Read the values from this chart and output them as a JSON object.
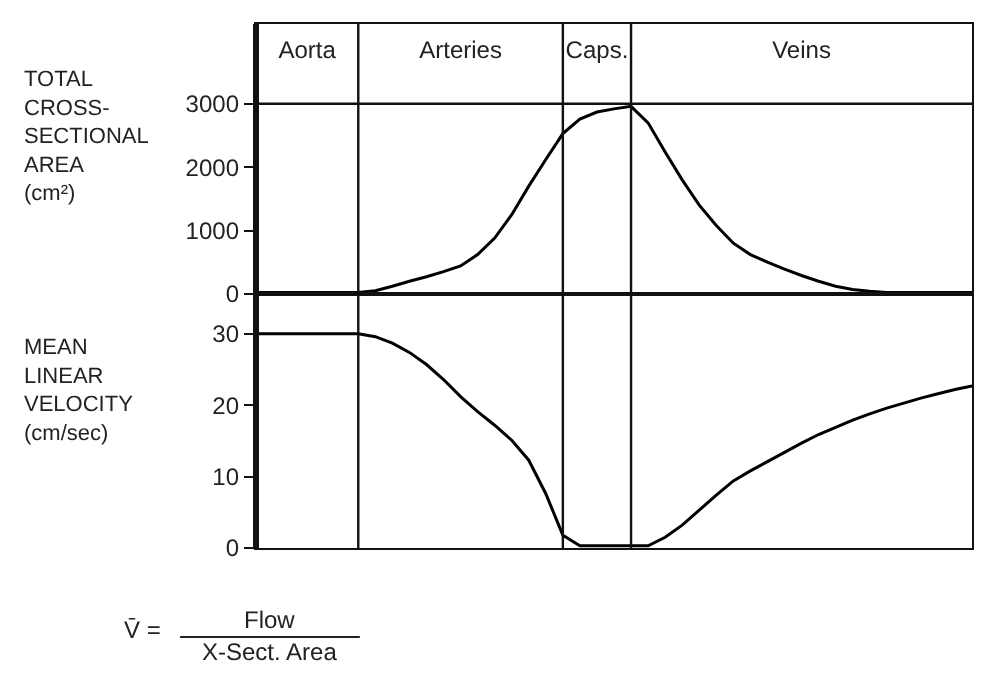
{
  "chart_data": [
    {
      "type": "line",
      "ylabel": "TOTAL\nCROSS-\nSECTIONAL\nAREA\n(cm²)",
      "categories": [
        null,
        null,
        null,
        "Aorta",
        null,
        null,
        null,
        null,
        null,
        null,
        null,
        null,
        "Arteries",
        null,
        null,
        null,
        null,
        null,
        null,
        null,
        "Caps.",
        null,
        null,
        null,
        null,
        null,
        null,
        null,
        null,
        null,
        null,
        null,
        "Veins",
        null,
        null,
        null,
        null,
        null,
        null,
        null,
        null,
        null,
        null
      ],
      "series": [
        {
          "color": "#000000",
          "values": [
            20,
            20,
            20,
            20,
            20,
            20,
            20,
            50,
            120,
            200,
            270,
            350,
            440,
            620,
            880,
            1250,
            1700,
            2120,
            2530,
            2760,
            2870,
            2920,
            2960,
            2700,
            2240,
            1800,
            1400,
            1080,
            800,
            620,
            500,
            390,
            290,
            200,
            120,
            70,
            40,
            20,
            20,
            20,
            20,
            20,
            20
          ]
        }
      ],
      "ylim": [
        0,
        4260
      ],
      "yticks": [
        0,
        1000,
        2000,
        3000
      ],
      "grid": "x",
      "line_style": "solid",
      "marker": "none",
      "ref_lines": [
        {
          "axis": "y",
          "value": 3000
        }
      ]
    },
    {
      "type": "line",
      "ylabel": "MEAN\nLINEAR\nVELOCITY\n(cm/sec)",
      "categories": [
        null,
        null,
        null,
        null,
        null,
        null,
        null,
        null,
        null,
        null,
        null,
        null,
        null,
        null,
        null,
        null,
        null,
        null,
        null,
        null,
        null,
        null,
        null,
        null,
        null,
        null,
        null,
        null,
        null,
        null,
        null,
        null,
        null,
        null,
        null,
        null,
        null,
        null,
        null,
        null,
        null,
        null,
        null
      ],
      "series": [
        {
          "color": "#000000",
          "values": [
            30,
            30,
            30,
            30,
            30,
            30,
            30,
            29.6,
            28.7,
            27.4,
            25.7,
            23.6,
            21.2,
            19.1,
            17.2,
            15.1,
            12.3,
            7.6,
            1.8,
            0.3,
            0.3,
            0.3,
            0.3,
            0.3,
            1.5,
            3.2,
            5.3,
            7.4,
            9.4,
            10.8,
            12.1,
            13.4,
            14.7,
            15.9,
            16.9,
            17.9,
            18.8,
            19.6,
            20.3,
            21,
            21.6,
            22.2,
            22.7
          ]
        }
      ],
      "ylim": [
        0,
        35.6
      ],
      "yticks": [
        0,
        10,
        20,
        30
      ],
      "grid": "x",
      "line_style": "solid",
      "marker": "none",
      "annotations": [
        "V̄ =",
        "Flow",
        "X-Sect. Area"
      ]
    }
  ]
}
